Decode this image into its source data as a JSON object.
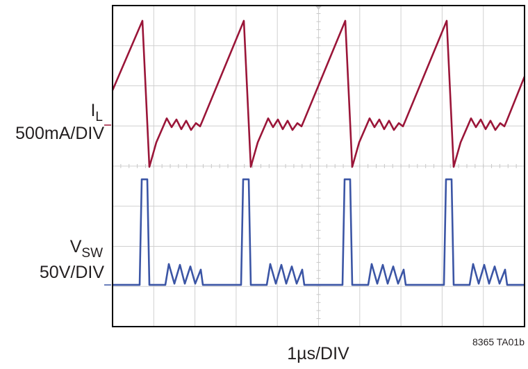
{
  "chart_data": {
    "type": "line",
    "xlabel": "1µs/DIV",
    "note": "8365 TA01b",
    "xlim": [
      0,
      10
    ],
    "ylim": [
      0,
      8
    ],
    "xticks": [
      0,
      1,
      2,
      3,
      4,
      5,
      6,
      7,
      8,
      9,
      10
    ],
    "yticks": [
      0,
      1,
      2,
      3,
      4,
      5,
      6,
      7,
      8
    ],
    "grid": true,
    "series": [
      {
        "name": "I",
        "name_sub": "L",
        "scale": "500mA/DIV",
        "color": "#9a1538",
        "x": [
          0,
          0.725,
          0.894,
          1.062,
          1.315,
          1.433,
          1.551,
          1.669,
          1.787,
          1.905,
          2.023,
          2.125,
          2.175,
          3.187,
          3.356,
          3.524,
          3.777,
          3.895,
          4.013,
          4.131,
          4.249,
          4.367,
          4.485,
          4.587,
          4.637,
          5.649,
          5.818,
          5.986,
          6.239,
          6.357,
          6.475,
          6.593,
          6.711,
          6.829,
          6.947,
          7.049,
          7.099,
          8.111,
          8.28,
          8.448,
          8.701,
          8.819,
          8.937,
          9.055,
          9.173,
          9.291,
          9.409,
          9.511,
          9.561,
          10
        ],
        "values": [
          5.89,
          7.62,
          3.98,
          4.59,
          5.19,
          4.97,
          5.16,
          4.92,
          5.13,
          4.9,
          5.07,
          4.99,
          5.11,
          7.62,
          3.98,
          4.59,
          5.19,
          4.97,
          5.16,
          4.92,
          5.13,
          4.9,
          5.07,
          4.99,
          5.11,
          7.62,
          3.98,
          4.59,
          5.19,
          4.97,
          5.16,
          4.92,
          5.13,
          4.9,
          5.07,
          4.99,
          5.11,
          7.62,
          3.98,
          4.59,
          5.19,
          4.97,
          5.16,
          4.92,
          5.13,
          4.9,
          5.07,
          4.99,
          5.11,
          6.23
        ]
      },
      {
        "name": "V",
        "name_sub": "SW",
        "scale": "50V/DIV",
        "color": "#3b55a5",
        "x": [
          0,
          0.658,
          0.708,
          0.843,
          0.894,
          1.281,
          1.366,
          1.501,
          1.636,
          1.754,
          1.889,
          2.007,
          2.141,
          2.192,
          3.12,
          3.17,
          3.305,
          3.356,
          3.743,
          3.828,
          3.963,
          4.098,
          4.216,
          4.351,
          4.469,
          4.603,
          4.654,
          5.582,
          5.632,
          5.767,
          5.818,
          6.205,
          6.29,
          6.425,
          6.56,
          6.678,
          6.813,
          6.931,
          7.065,
          7.116,
          8.044,
          8.094,
          8.229,
          8.28,
          8.667,
          8.752,
          8.887,
          9.022,
          9.14,
          9.275,
          9.393,
          9.527,
          9.578,
          10
        ],
        "values": [
          1.04,
          1.04,
          3.67,
          3.67,
          1.04,
          1.04,
          1.56,
          1.07,
          1.54,
          1.07,
          1.5,
          1.07,
          1.42,
          1.04,
          1.04,
          3.67,
          3.67,
          1.04,
          1.04,
          1.56,
          1.07,
          1.54,
          1.07,
          1.5,
          1.07,
          1.42,
          1.04,
          1.04,
          3.67,
          3.67,
          1.04,
          1.04,
          1.56,
          1.07,
          1.54,
          1.07,
          1.5,
          1.07,
          1.42,
          1.04,
          1.04,
          3.67,
          3.67,
          1.04,
          1.04,
          1.56,
          1.07,
          1.54,
          1.07,
          1.5,
          1.07,
          1.42,
          1.04,
          1.04
        ]
      }
    ]
  }
}
